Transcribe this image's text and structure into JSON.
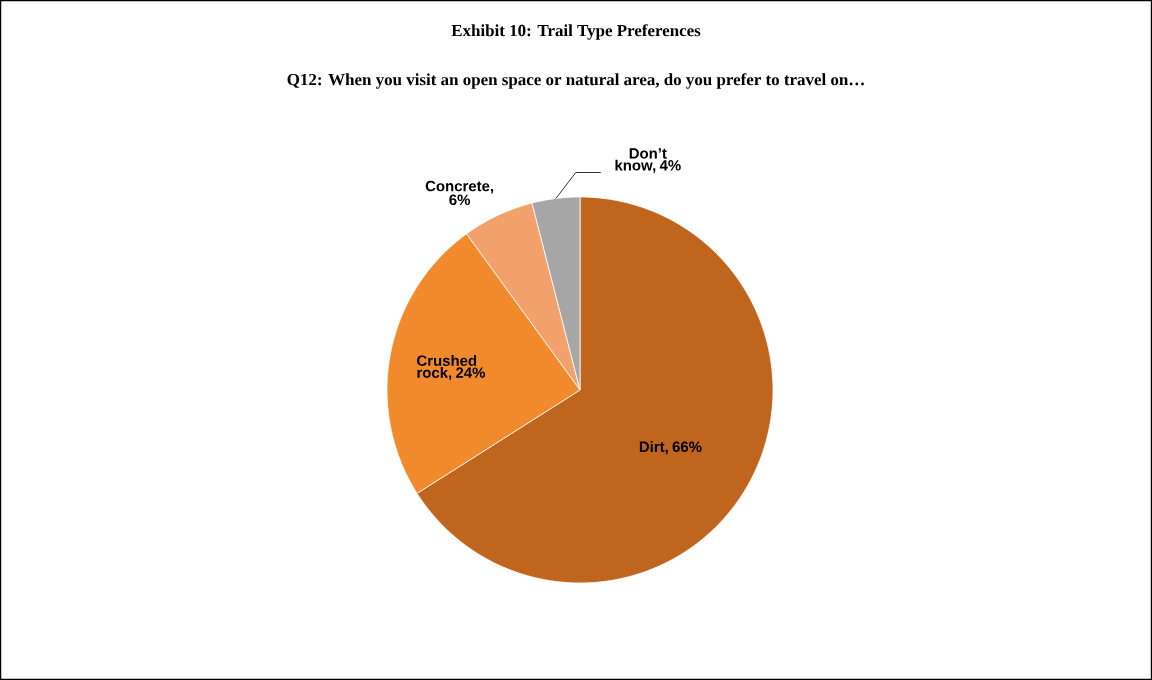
{
  "chart_data": {
    "type": "pie",
    "title": "Exhibit 10: Trail Type Preferences",
    "subtitle": "Q12: When you visit an open space or natural area, do you prefer to travel on…",
    "categories": [
      "Dirt, 66%",
      "Crushed rock, 24%",
      "Concrete, 6%",
      "Don’t know, 4%"
    ],
    "values": [
      66,
      24,
      6,
      4
    ],
    "colors": [
      "#c0651e",
      "#f08a2c",
      "#f2a06c",
      "#a6a6a6"
    ]
  }
}
